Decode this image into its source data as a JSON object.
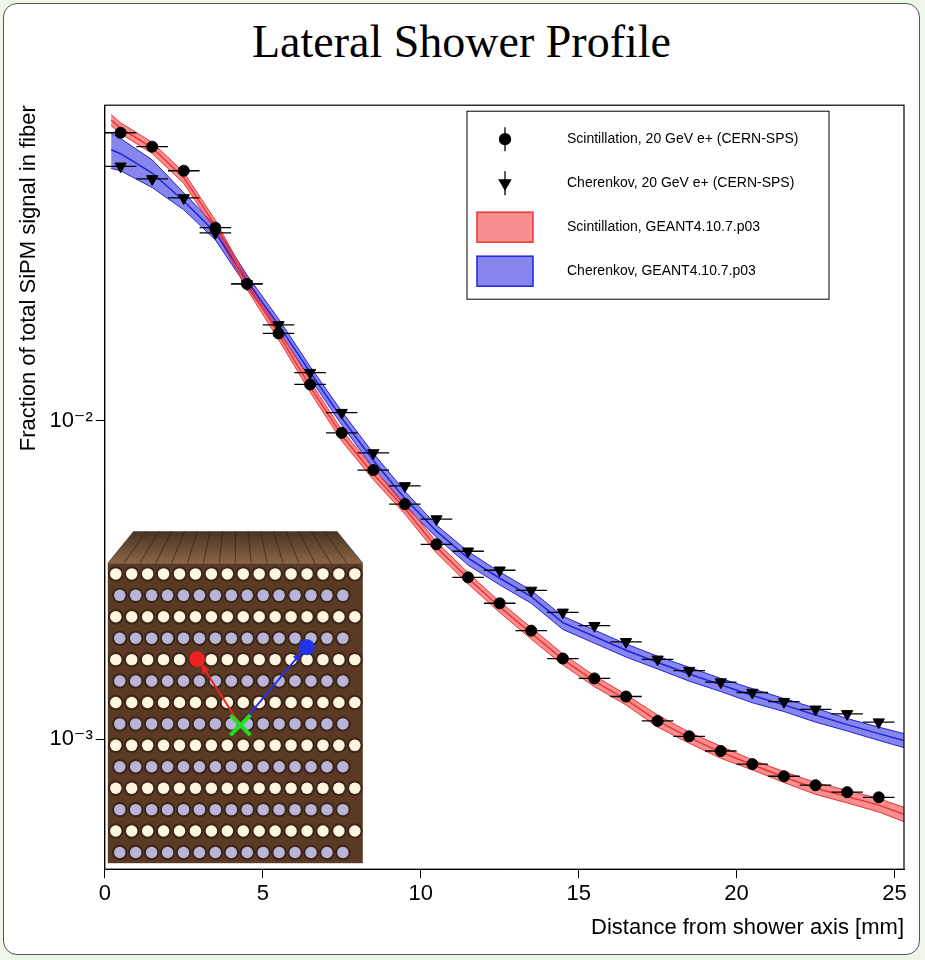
{
  "chart_data": {
    "type": "scatter",
    "title": "Lateral Shower Profile",
    "x_label": "Distance from shower axis [mm]",
    "y_label": "Fraction of total SiPM signal in fiber",
    "log": "y",
    "grid": false,
    "legend": "upper right",
    "xlim": [
      0,
      25.3
    ],
    "xticks": [
      0,
      5,
      10,
      15,
      20,
      25
    ],
    "ylim": [
      0.00039,
      0.098
    ],
    "yticks": [
      {
        "value": 0.001,
        "label": "10⁻³"
      },
      {
        "value": 0.01,
        "label": "10⁻²"
      }
    ],
    "series": [
      {
        "name": "Scintillation, 20 GeV e+ (CERN-SPS)",
        "type": "scatter",
        "marker": "circle",
        "color": "#000000",
        "x": [
          0.5,
          1.5,
          2.5,
          3.5,
          4.5,
          5.5,
          6.5,
          7.5,
          8.5,
          9.5,
          10.5,
          11.5,
          12.5,
          13.5,
          14.5,
          15.5,
          16.5,
          17.5,
          18.5,
          19.5,
          20.5,
          21.5,
          22.5,
          23.5,
          24.5
        ],
        "values": [
          0.0803,
          0.0726,
          0.061,
          0.0404,
          0.0269,
          0.0188,
          0.013,
          0.00916,
          0.007,
          0.00547,
          0.00409,
          0.00322,
          0.00267,
          0.00219,
          0.00179,
          0.00155,
          0.00136,
          0.00114,
          0.00102,
          0.000917,
          0.000834,
          0.000764,
          0.000716,
          0.000681,
          0.000656
        ],
        "x_error": 0.5
      },
      {
        "name": "Cherenkov, 20 GeV e+ (CERN-SPS)",
        "type": "scatter",
        "marker": "triangle_down",
        "color": "#000000",
        "x": [
          0.5,
          1.5,
          2.5,
          3.5,
          4.5,
          5.5,
          6.5,
          7.5,
          8.5,
          9.5,
          10.5,
          11.5,
          12.5,
          13.5,
          14.5,
          15.5,
          16.5,
          17.5,
          18.5,
          19.5,
          20.5,
          21.5,
          22.5,
          23.5,
          24.5
        ],
        "values": [
          0.063,
          0.0575,
          0.0501,
          0.0389,
          0.0269,
          0.02,
          0.01416,
          0.0106,
          0.00792,
          0.00624,
          0.00491,
          0.00389,
          0.00339,
          0.00293,
          0.0025,
          0.00227,
          0.00202,
          0.00178,
          0.00164,
          0.00151,
          0.0014,
          0.00131,
          0.00124,
          0.0012,
          0.00113
        ],
        "x_error": 0.5
      },
      {
        "name": "Scintillation, GEANT4.10.7.p03",
        "type": "band",
        "color": "#ee3333",
        "x": [
          0.2,
          0.5,
          1.5,
          2.5,
          3.5,
          4.5,
          5.5,
          6.5,
          7.5,
          8.5,
          9.5,
          10.5,
          11.5,
          12.5,
          13.5,
          14.5,
          15.5,
          16.5,
          17.5,
          18.5,
          19.5,
          20.5,
          21.5,
          22.5,
          23.5,
          24.5,
          25.3
        ],
        "values": [
          0.088,
          0.083,
          0.072,
          0.058,
          0.041,
          0.027,
          0.0187,
          0.0128,
          0.009,
          0.0068,
          0.0053,
          0.004,
          0.0032,
          0.0026,
          0.00215,
          0.00178,
          0.00152,
          0.00133,
          0.00114,
          0.00101,
          0.00091,
          0.00083,
          0.00076,
          0.0007,
          0.00066,
          0.00062,
          0.00058
        ],
        "lower": [
          0.0845,
          0.0797,
          0.0691,
          0.0557,
          0.0394,
          0.0259,
          0.018,
          0.0123,
          0.00864,
          0.00653,
          0.00509,
          0.00384,
          0.00307,
          0.0025,
          0.00206,
          0.00171,
          0.00146,
          0.00128,
          0.00109,
          0.00097,
          0.00087,
          0.0008,
          0.00073,
          0.00067,
          0.00063,
          0.00059,
          0.00055
        ],
        "upper": [
          0.0915,
          0.0863,
          0.0749,
          0.0603,
          0.0426,
          0.0281,
          0.0194,
          0.0133,
          0.00936,
          0.00707,
          0.00551,
          0.00416,
          0.00333,
          0.0027,
          0.00224,
          0.00185,
          0.00158,
          0.00138,
          0.00119,
          0.00105,
          0.00095,
          0.00086,
          0.00079,
          0.00073,
          0.00069,
          0.00065,
          0.00061
        ]
      },
      {
        "name": "Cherenkov, GEANT4.10.7.p03",
        "type": "band",
        "color": "#2222dd",
        "x": [
          0.2,
          0.5,
          1.5,
          2.5,
          3.5,
          4.5,
          5.5,
          6.5,
          7.5,
          8.5,
          9.5,
          10.5,
          11.5,
          12.5,
          13.5,
          14.5,
          15.5,
          16.5,
          17.5,
          18.5,
          19.5,
          20.5,
          21.5,
          22.5,
          23.5,
          24.5,
          25.3
        ],
        "values": [
          0.071,
          0.069,
          0.06,
          0.049,
          0.039,
          0.0275,
          0.02,
          0.0142,
          0.0102,
          0.0075,
          0.0057,
          0.0045,
          0.0037,
          0.0032,
          0.0028,
          0.00232,
          0.0021,
          0.0019,
          0.00174,
          0.0016,
          0.00148,
          0.00137,
          0.00128,
          0.00119,
          0.00111,
          0.00104,
          0.00099
        ],
        "lower": [
          0.062,
          0.061,
          0.054,
          0.046,
          0.037,
          0.0263,
          0.0191,
          0.0136,
          0.0097,
          0.0071,
          0.0054,
          0.0043,
          0.00352,
          0.00305,
          0.00267,
          0.00221,
          0.002,
          0.00181,
          0.00166,
          0.00152,
          0.00141,
          0.0013,
          0.00122,
          0.00113,
          0.00106,
          0.00099,
          0.00094
        ],
        "upper": [
          0.08,
          0.077,
          0.066,
          0.052,
          0.041,
          0.0287,
          0.0209,
          0.0148,
          0.0107,
          0.0079,
          0.006,
          0.0047,
          0.00388,
          0.00335,
          0.00293,
          0.00243,
          0.0022,
          0.00199,
          0.00182,
          0.00168,
          0.00155,
          0.00144,
          0.00134,
          0.00125,
          0.00116,
          0.00109,
          0.00104
        ]
      }
    ]
  }
}
